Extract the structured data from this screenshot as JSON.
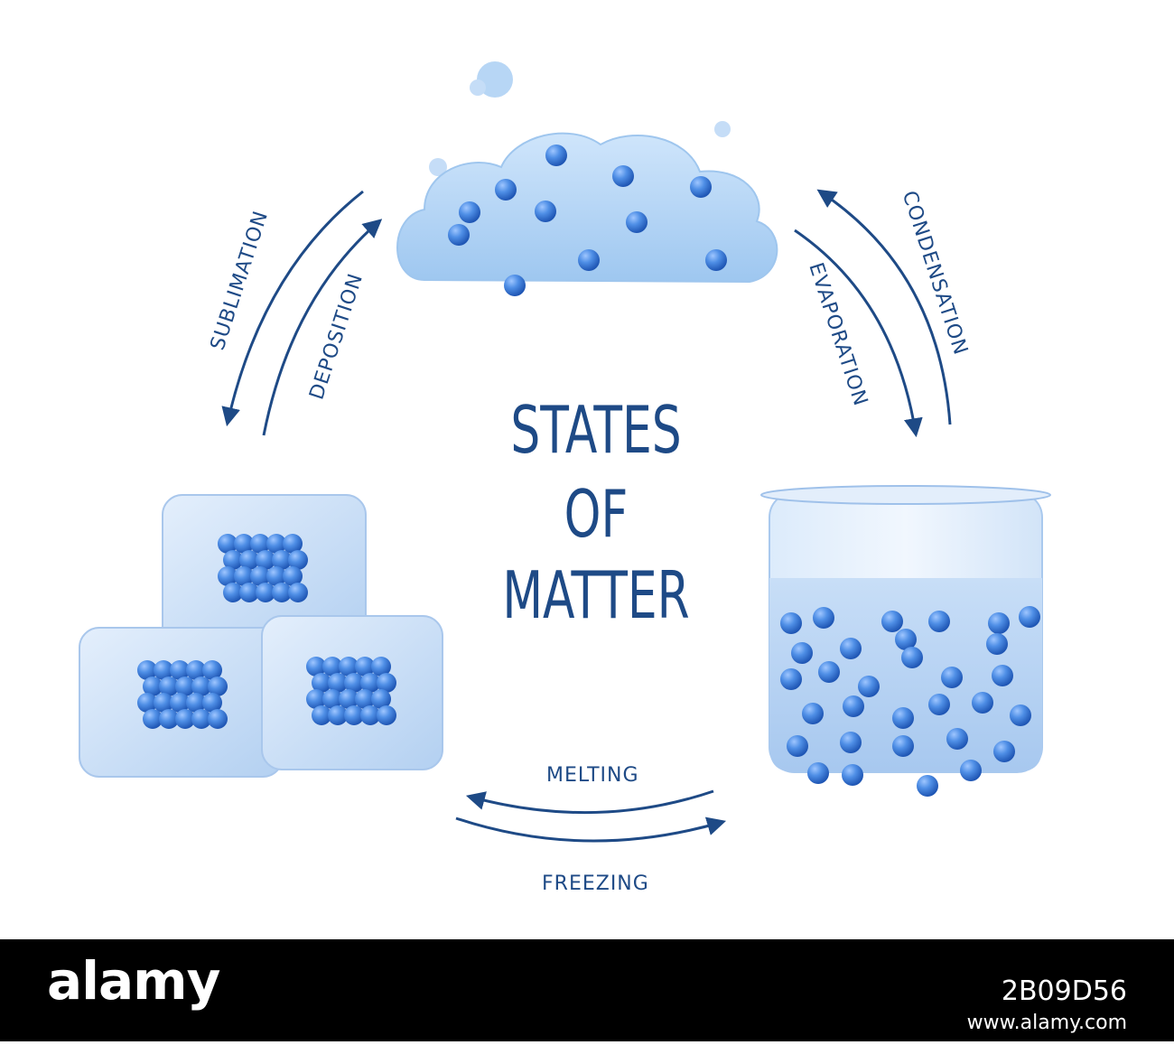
{
  "title": {
    "line1": "STATES",
    "line2": "OF",
    "line3": "MATTER"
  },
  "transitions": {
    "sublimation": "SUBLIMATION",
    "deposition": "DEPOSITION",
    "condensation": "CONDENSATION",
    "evaporation": "EVAPORATION",
    "melting": "MELTING",
    "freezing": "FREEZING"
  },
  "footer": {
    "brand": "alamy",
    "image_id": "2B09D56",
    "url": "www.alamy.com"
  },
  "colors": {
    "text": "#1e4a86",
    "particle": "#3a78d8",
    "cloud": "#b8d8f5",
    "ice": "#c9def5",
    "liquid": "#bcd6f4"
  }
}
